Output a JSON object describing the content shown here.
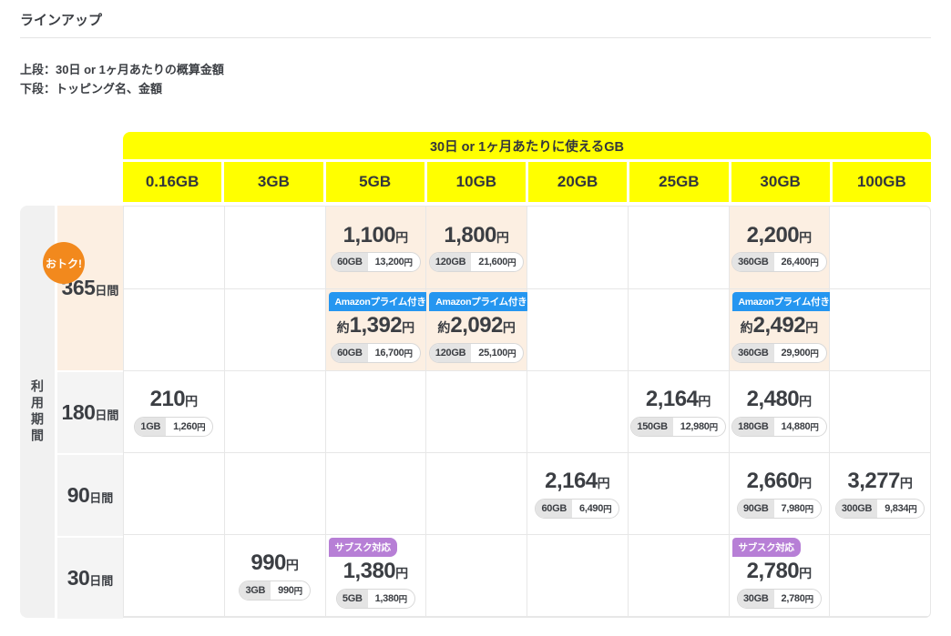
{
  "page": {
    "title": "ラインアップ",
    "notes": [
      "上段：30日 or 1ヶ月あたりの概算金額",
      "下段：トッピング名、金額"
    ]
  },
  "table": {
    "banner": "30日 or 1ヶ月あたりに使えるGB",
    "axis_label": "利用期間",
    "columns": [
      "0.16GB",
      "3GB",
      "5GB",
      "10GB",
      "20GB",
      "25GB",
      "30GB",
      "100GB"
    ],
    "periods": [
      {
        "num": "365",
        "unit": "日間",
        "highlight": true,
        "badge": "おトク!"
      },
      {
        "num": "180",
        "unit": "日間"
      },
      {
        "num": "90",
        "unit": "日間"
      },
      {
        "num": "30",
        "unit": "日間"
      }
    ],
    "badge_labels": {
      "amazon": "Amazonプライム付き",
      "subsc": "サブスク対応"
    },
    "approx_prefix": "約",
    "yen": "円",
    "colors": {
      "accent_yellow": "#ffff00",
      "highlight_peach": "#fcefe2",
      "otoku_orange": "#f2891d",
      "amazon_blue": "#2596f0",
      "subsc_purple": "#b77fd6"
    },
    "cells": [
      {
        "r": 0,
        "c": 2,
        "price": "1,100",
        "gb": "60GB",
        "topping_price": "13,200",
        "peach": true
      },
      {
        "r": 0,
        "c": 3,
        "price": "1,800",
        "gb": "120GB",
        "topping_price": "21,600",
        "peach": true
      },
      {
        "r": 0,
        "c": 6,
        "price": "2,200",
        "gb": "360GB",
        "topping_price": "26,400",
        "peach": true
      },
      {
        "r": 1,
        "c": 2,
        "price": "1,392",
        "approx": true,
        "badge": "amazon",
        "gb": "60GB",
        "topping_price": "16,700",
        "peach": true
      },
      {
        "r": 1,
        "c": 3,
        "price": "2,092",
        "approx": true,
        "badge": "amazon",
        "gb": "120GB",
        "topping_price": "25,100",
        "peach": true
      },
      {
        "r": 1,
        "c": 6,
        "price": "2,492",
        "approx": true,
        "badge": "amazon",
        "gb": "360GB",
        "topping_price": "29,900",
        "peach": true
      },
      {
        "r": 2,
        "c": 0,
        "price": "210",
        "gb": "1GB",
        "topping_price": "1,260"
      },
      {
        "r": 2,
        "c": 5,
        "price": "2,164",
        "gb": "150GB",
        "topping_price": "12,980"
      },
      {
        "r": 2,
        "c": 6,
        "price": "2,480",
        "gb": "180GB",
        "topping_price": "14,880"
      },
      {
        "r": 3,
        "c": 4,
        "price": "2,164",
        "gb": "60GB",
        "topping_price": "6,490"
      },
      {
        "r": 3,
        "c": 6,
        "price": "2,660",
        "gb": "90GB",
        "topping_price": "7,980"
      },
      {
        "r": 3,
        "c": 7,
        "price": "3,277",
        "gb": "300GB",
        "topping_price": "9,834"
      },
      {
        "r": 4,
        "c": 1,
        "price": "990",
        "gb": "3GB",
        "topping_price": "990"
      },
      {
        "r": 4,
        "c": 2,
        "price": "1,380",
        "badge": "subsc",
        "gb": "5GB",
        "topping_price": "1,380"
      },
      {
        "r": 4,
        "c": 6,
        "price": "2,780",
        "badge": "subsc",
        "gb": "30GB",
        "topping_price": "2,780"
      }
    ],
    "row_period_keys": [
      "365",
      "365",
      "180",
      "90",
      "30"
    ]
  }
}
